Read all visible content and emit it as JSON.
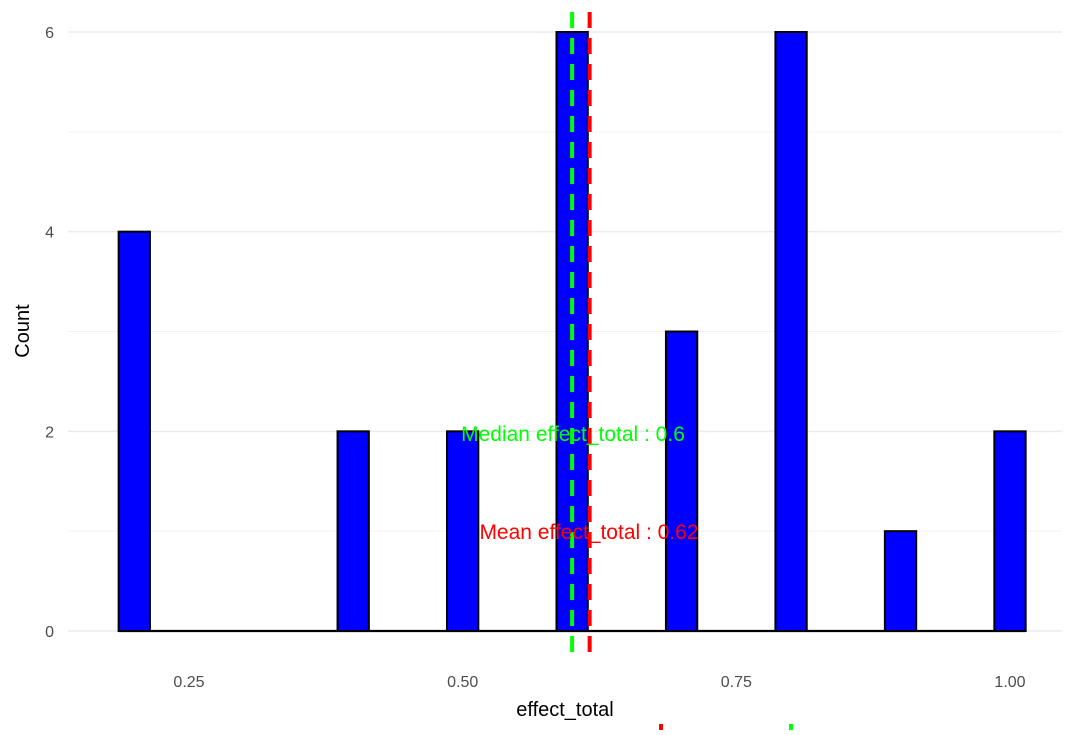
{
  "chart_data": {
    "type": "bar",
    "xlabel": "effect_total",
    "ylabel": "Count",
    "xlim": [
      0.17,
      1.035
    ],
    "ylim": [
      0,
      6
    ],
    "grid": true,
    "bin_width": 0.0286,
    "x_ticks": [
      {
        "value": 0.25,
        "label": "0.25"
      },
      {
        "value": 0.5,
        "label": "0.50"
      },
      {
        "value": 0.75,
        "label": "0.75"
      },
      {
        "value": 1.0,
        "label": "1.00"
      }
    ],
    "y_ticks": [
      {
        "value": 0,
        "label": "0"
      },
      {
        "value": 2,
        "label": "2"
      },
      {
        "value": 4,
        "label": "4"
      },
      {
        "value": 6,
        "label": "6"
      }
    ],
    "bins": [
      {
        "x": 0.2,
        "count": 4
      },
      {
        "x": 0.4,
        "count": 2
      },
      {
        "x": 0.5,
        "count": 2
      },
      {
        "x": 0.6,
        "count": 6
      },
      {
        "x": 0.7,
        "count": 3
      },
      {
        "x": 0.8,
        "count": 6
      },
      {
        "x": 0.9,
        "count": 1
      },
      {
        "x": 1.0,
        "count": 2
      }
    ],
    "bar_fill": "#0000ff",
    "bar_stroke": "#000000",
    "median": {
      "value": 0.6,
      "label": "Median effect_total : 0.6",
      "color": "#00ff00"
    },
    "mean": {
      "value": 0.616,
      "label": "Mean effect_total : 0.62",
      "color": "#ff0000"
    }
  }
}
